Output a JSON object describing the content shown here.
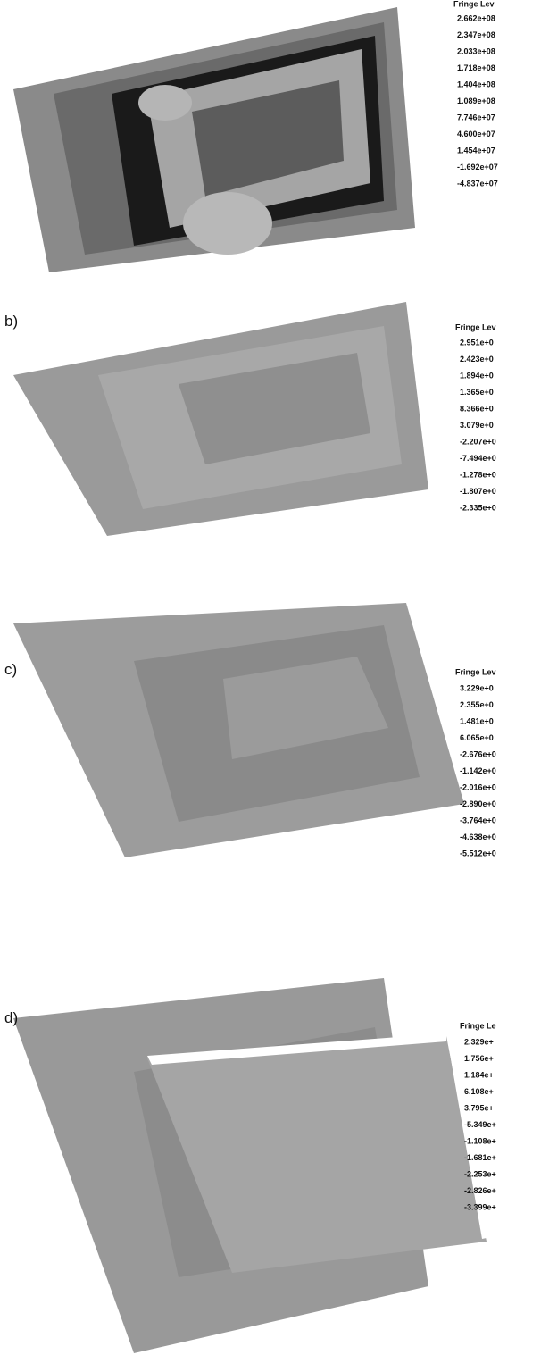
{
  "panels": [
    {
      "legend_title": "Fringe Lev",
      "legend_values": [
        "2.662e+08",
        "2.347e+08",
        "2.033e+08",
        "1.718e+08",
        "1.404e+08",
        "1.089e+08",
        "7.746e+07",
        "4.600e+07",
        "1.454e+07",
        "-1.692e+07",
        "-4.837e+07"
      ]
    },
    {
      "label": "b)",
      "legend_title": "Fringe Lev",
      "legend_values": [
        "2.951e+0",
        "2.423e+0",
        "1.894e+0",
        "1.365e+0",
        "8.366e+0",
        "3.079e+0",
        "-2.207e+0",
        "-7.494e+0",
        "-1.278e+0",
        "-1.807e+0",
        "-2.335e+0"
      ]
    },
    {
      "label": "c)",
      "legend_title": "Fringe Lev",
      "legend_values": [
        "3.229e+0",
        "2.355e+0",
        "1.481e+0",
        "6.065e+0",
        "-2.676e+0",
        "-1.142e+0",
        "-2.016e+0",
        "-2.890e+0",
        "-3.764e+0",
        "-4.638e+0",
        "-5.512e+0"
      ]
    },
    {
      "label": "d)",
      "legend_title": "Fringe Le",
      "legend_values": [
        "2.329e+",
        "1.756e+",
        "1.184e+",
        "6.108e+",
        "3.795e+",
        "-5.349e+",
        "-1.108e+",
        "-1.681e+",
        "-2.253e+",
        "-2.826e+",
        "-3.399e+"
      ]
    }
  ]
}
